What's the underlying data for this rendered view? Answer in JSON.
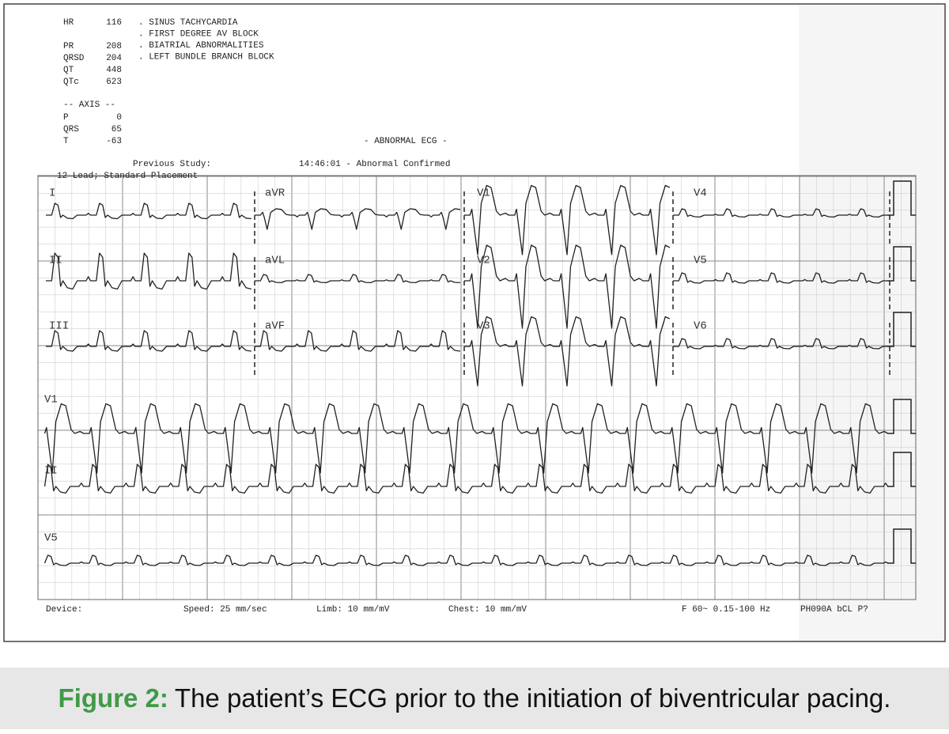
{
  "measurements": [
    {
      "label": "HR",
      "value": 116
    },
    {
      "label": "PR",
      "value": 208
    },
    {
      "label": "QRSD",
      "value": 204
    },
    {
      "label": "QT",
      "value": 448
    },
    {
      "label": "QTc",
      "value": 623
    }
  ],
  "interpretation": [
    ". SINUS TACHYCARDIA",
    ". FIRST DEGREE AV BLOCK",
    ". BIATRIAL ABNORMALITIES",
    ". LEFT BUNDLE BRANCH BLOCK"
  ],
  "axis": {
    "title": "-- AXIS --",
    "rows": [
      {
        "label": "P",
        "value": 0
      },
      {
        "label": "QRS",
        "value": 65
      },
      {
        "label": "T",
        "value": -63
      }
    ]
  },
  "status": "- ABNORMAL ECG -",
  "previous_study": "Previous Study:",
  "confirmed": "14:46:01 - Abnormal Confirmed",
  "placement": "12 Lead; Standard Placement",
  "leads": [
    [
      "I",
      "aVR",
      "V1",
      "V4"
    ],
    [
      "II",
      "aVL",
      "V2",
      "V5"
    ],
    [
      "III",
      "aVF",
      "V3",
      "V6"
    ]
  ],
  "rhythm_leads": [
    "V1",
    "II",
    "V5"
  ],
  "footer": {
    "device": "Device:",
    "speed": "Speed: 25 mm/sec",
    "limb": "Limb: 10 mm/mV",
    "chest": "Chest: 10 mm/mV",
    "filter": "F 60~ 0.15-100 Hz",
    "code": "PH090A bCL P?"
  },
  "caption": {
    "label": "Figure 2:",
    "text": "The patient’s ECG prior to the initiation of biventricular pacing."
  }
}
